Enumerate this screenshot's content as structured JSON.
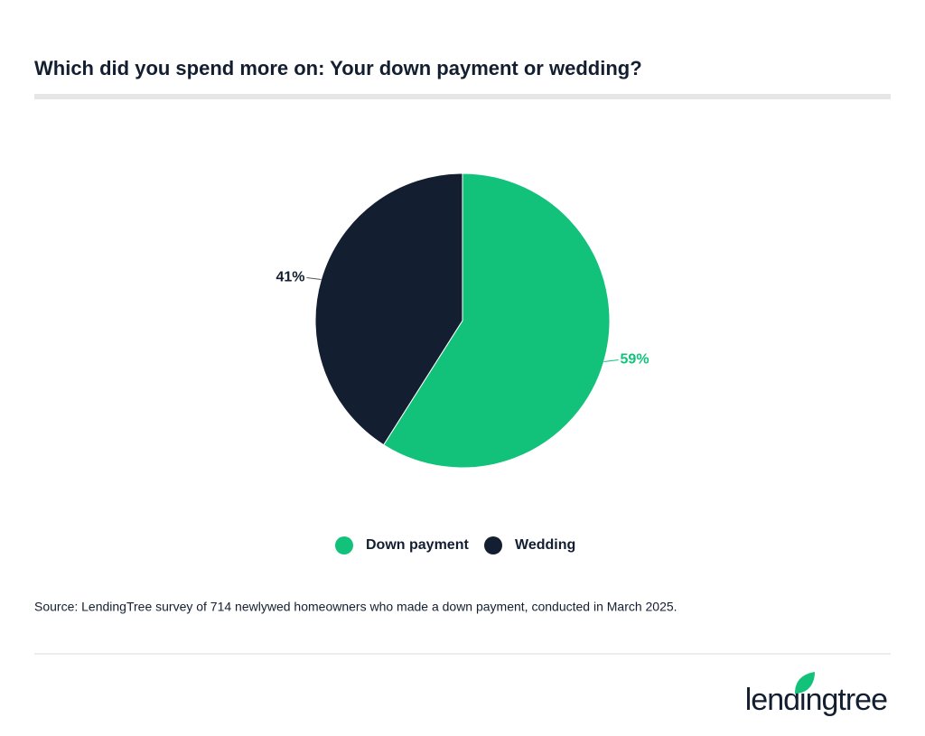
{
  "chart_data": {
    "type": "pie",
    "title": "Which did you spend more on: Your down payment or wedding?",
    "categories": [
      "Down payment",
      "Wedding"
    ],
    "values": [
      59,
      41
    ],
    "value_labels": [
      "59%",
      "41%"
    ],
    "colors": [
      "#12c27a",
      "#131f30"
    ],
    "source": "Source: LendingTree survey of 714 newlywed homeowners who made a down payment, conducted in March 2025."
  },
  "brand": "lendingtree"
}
